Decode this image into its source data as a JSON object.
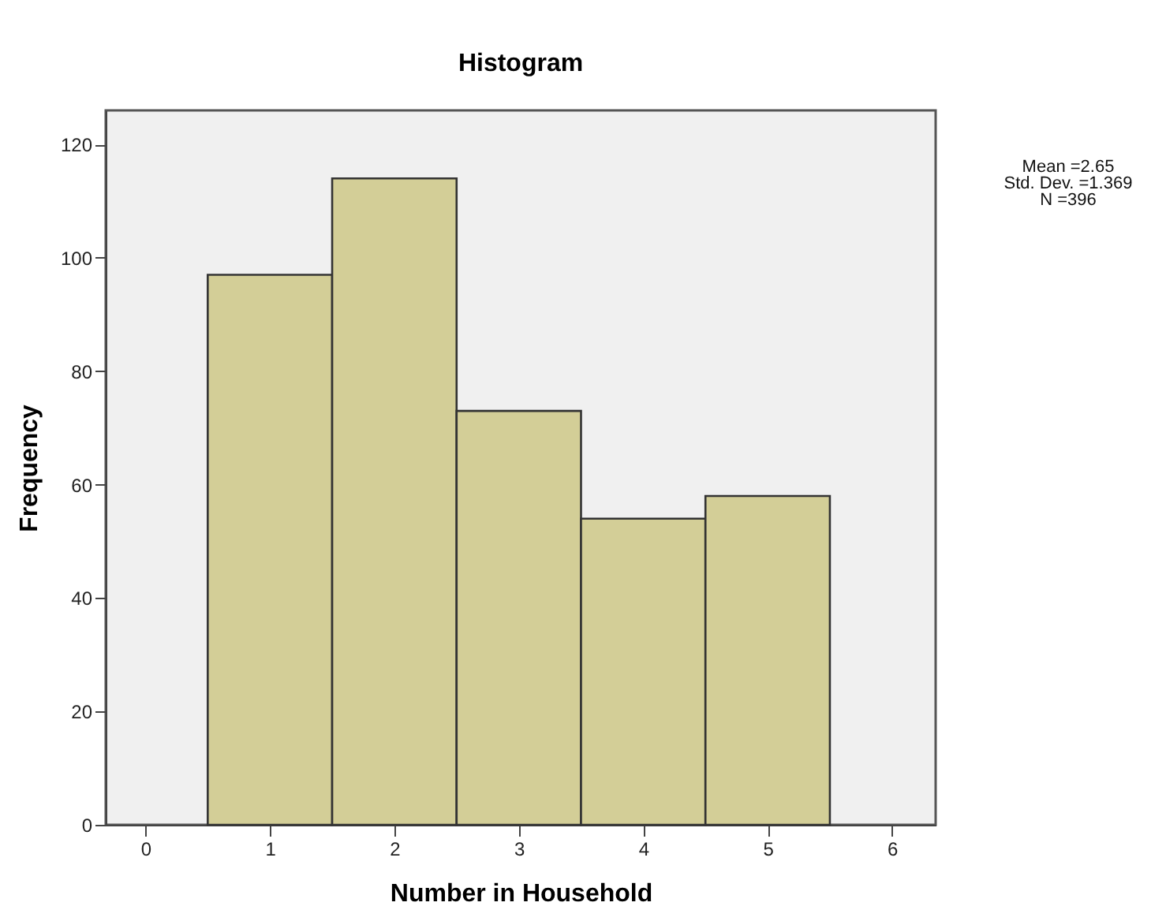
{
  "chart_data": {
    "type": "histogram",
    "title": "Histogram",
    "xlabel": "Number in Household",
    "ylabel": "Frequency",
    "bins": [
      0.5,
      1.5,
      2.5,
      3.5,
      4.5,
      5.5
    ],
    "values": [
      97,
      114,
      73,
      54,
      58
    ],
    "color": "#d3ce97",
    "xlim": [
      -0.32,
      6.35
    ],
    "xticks": [
      0,
      1,
      2,
      3,
      4,
      5,
      6
    ],
    "ylim": [
      0,
      126
    ],
    "yticks": [
      0,
      20,
      40,
      60,
      80,
      100,
      120
    ],
    "grid": false,
    "annotations": [
      "Mean =2.65",
      "Std. Dev. =1.369",
      "N =396"
    ]
  }
}
